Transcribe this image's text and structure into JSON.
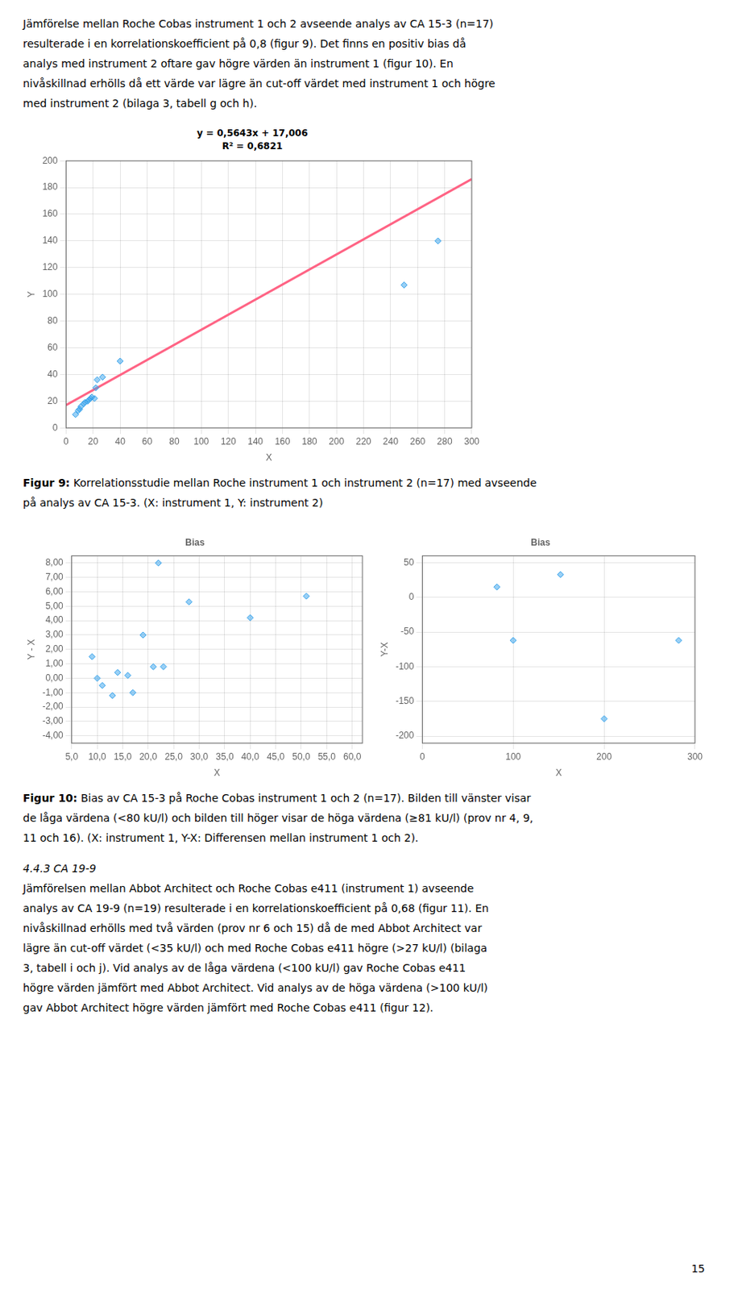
{
  "page": {
    "text_top": [
      "Jämförelse mellan Roche Cobas instrument 1 och 2 avseende analys av CA 15-3 (n=17)",
      "resulterade i en korrelationskoefficient på 0,8 (figur 9). Det finns en positiv bias då",
      "analys med instrument 2 oftare gav högre värden än instrument 1 (figur 10). En",
      "nivåskillnad erhölls då ett värde var lägre än cut-off värdet med instrument 1 och högre",
      "med instrument 2 (bilaga 3, tabell g och h)."
    ],
    "captions": [
      {
        "bold": "Figur 9:",
        "lines": [
          " Korrelationsstudie mellan Roche instrument 1 och instrument 2 (n=17) med avseende",
          "på analys av CA 15-3. (X: instrument 1, Y: instrument 2)"
        ]
      },
      {
        "bold": "Figur 10:",
        "lines": [
          " Bias av CA 15-3 på Roche Cobas instrument 1 och 2 (n=17). Bilden till vänster visar",
          "de låga värdena (<80 kU/l) och bilden till höger visar de höga värdena (≥81 kU/l) (prov nr 4, 9,",
          "11 och 16). (X: instrument 1, Y-X: Differensen mellan instrument 1 och 2)."
        ]
      }
    ],
    "heading": "4.4.3 CA 19-9",
    "text_bottom": [
      "Jämförelsen mellan Abbot Architect och Roche Cobas e411 (instrument 1) avseende",
      "analys av CA 19-9 (n=19) resulterade i en korrelationskoefficient på 0,68 (figur 11). En",
      "nivåskillnad erhölls med två värden (prov nr 6 och 15) då de med Abbot Architect var",
      "lägre än cut-off värdet (<35 kU/l) och med Roche Cobas e411 högre (>27 kU/l) (bilaga",
      "3, tabell i och j). Vid analys av de låga värdena (<100 kU/l) gav Roche Cobas e411",
      "högre värden jämfört med Abbot Architect. Vid analys av de höga värdena (>100 kU/l)",
      "gav Abbot Architect högre värden jämfört med Roche Cobas e411 (figur 12)."
    ],
    "page_number": "15"
  },
  "chart_data": [
    {
      "type": "scatter",
      "annotations": [
        "y = 0,5643x + 17,006",
        "R² = 0,6821"
      ],
      "x_label": "X",
      "y_label": "Y",
      "xlim": [
        0,
        300
      ],
      "ylim": [
        0,
        200
      ],
      "xticks": [
        0,
        20,
        40,
        60,
        80,
        100,
        120,
        140,
        160,
        180,
        200,
        220,
        240,
        260,
        280,
        300
      ],
      "yticks": [
        0,
        20,
        40,
        60,
        80,
        100,
        120,
        140,
        160,
        180,
        200
      ],
      "grid": true,
      "series": [
        {
          "type": "scatter",
          "marker": "diamond",
          "x": [
            7,
            9,
            10,
            11,
            13,
            14,
            16,
            17,
            18,
            19,
            21,
            22,
            23,
            27,
            40,
            250,
            275
          ],
          "values": [
            10,
            13,
            14,
            16,
            18,
            19,
            20,
            21,
            22,
            23,
            22,
            30,
            36,
            38,
            50,
            107,
            140
          ]
        },
        {
          "type": "line",
          "x": [
            0,
            300
          ],
          "values": [
            17.006,
            186.296
          ]
        }
      ]
    },
    {
      "type": "scatter",
      "title": "Bias",
      "x_label": "X",
      "y_label": "Y - X",
      "xlim": [
        5,
        62
      ],
      "ylim": [
        -4.5,
        8.5
      ],
      "xticks": [
        {
          "value": 5.0,
          "label": "5,0"
        },
        {
          "value": 10.0,
          "label": "10,0"
        },
        {
          "value": 15.0,
          "label": "15,0"
        },
        {
          "value": 20.0,
          "label": "20,0"
        },
        {
          "value": 25.0,
          "label": "25,0"
        },
        {
          "value": 30.0,
          "label": "30,0"
        },
        {
          "value": 35.0,
          "label": "35,0"
        },
        {
          "value": 40.0,
          "label": "40,0"
        },
        {
          "value": 45.0,
          "label": "45,0"
        },
        {
          "value": 50.0,
          "label": "50,0"
        },
        {
          "value": 55.0,
          "label": "55,0"
        },
        {
          "value": 60.0,
          "label": "60,0"
        }
      ],
      "yticks": [
        {
          "value": -4.0,
          "label": "-4,00"
        },
        {
          "value": -3.0,
          "label": "-3,00"
        },
        {
          "value": -2.0,
          "label": "-2,00"
        },
        {
          "value": -1.0,
          "label": "-1,00"
        },
        {
          "value": 0.0,
          "label": "0,00"
        },
        {
          "value": 1.0,
          "label": "1,00"
        },
        {
          "value": 2.0,
          "label": "2,00"
        },
        {
          "value": 3.0,
          "label": "3,00"
        },
        {
          "value": 4.0,
          "label": "4,00"
        },
        {
          "value": 5.0,
          "label": "5,00"
        },
        {
          "value": 6.0,
          "label": "6,00"
        },
        {
          "value": 7.0,
          "label": "7,00"
        },
        {
          "value": 8.0,
          "label": "8,00"
        }
      ],
      "grid": true,
      "series": [
        {
          "type": "scatter",
          "marker": "diamond",
          "x": [
            9,
            10,
            11,
            13,
            14,
            16,
            17,
            19,
            21,
            22,
            23,
            28,
            40,
            51
          ],
          "values": [
            1.5,
            0.0,
            -0.5,
            -1.2,
            0.4,
            0.2,
            -1.0,
            3.0,
            0.8,
            8.0,
            0.8,
            5.3,
            4.2,
            5.7
          ]
        }
      ]
    },
    {
      "type": "scatter",
      "title": "Bias",
      "x_label": "X",
      "y_label": "Y-X",
      "xlim": [
        0,
        300
      ],
      "ylim": [
        -210,
        60
      ],
      "xticks": [
        0,
        100,
        200,
        300
      ],
      "yticks": [
        -200,
        -150,
        -100,
        -50,
        0,
        50
      ],
      "grid": true,
      "series": [
        {
          "type": "scatter",
          "marker": "diamond",
          "x": [
            82,
            100,
            152,
            200,
            282
          ],
          "values": [
            15,
            -62,
            33,
            -175,
            -62
          ]
        }
      ]
    }
  ]
}
